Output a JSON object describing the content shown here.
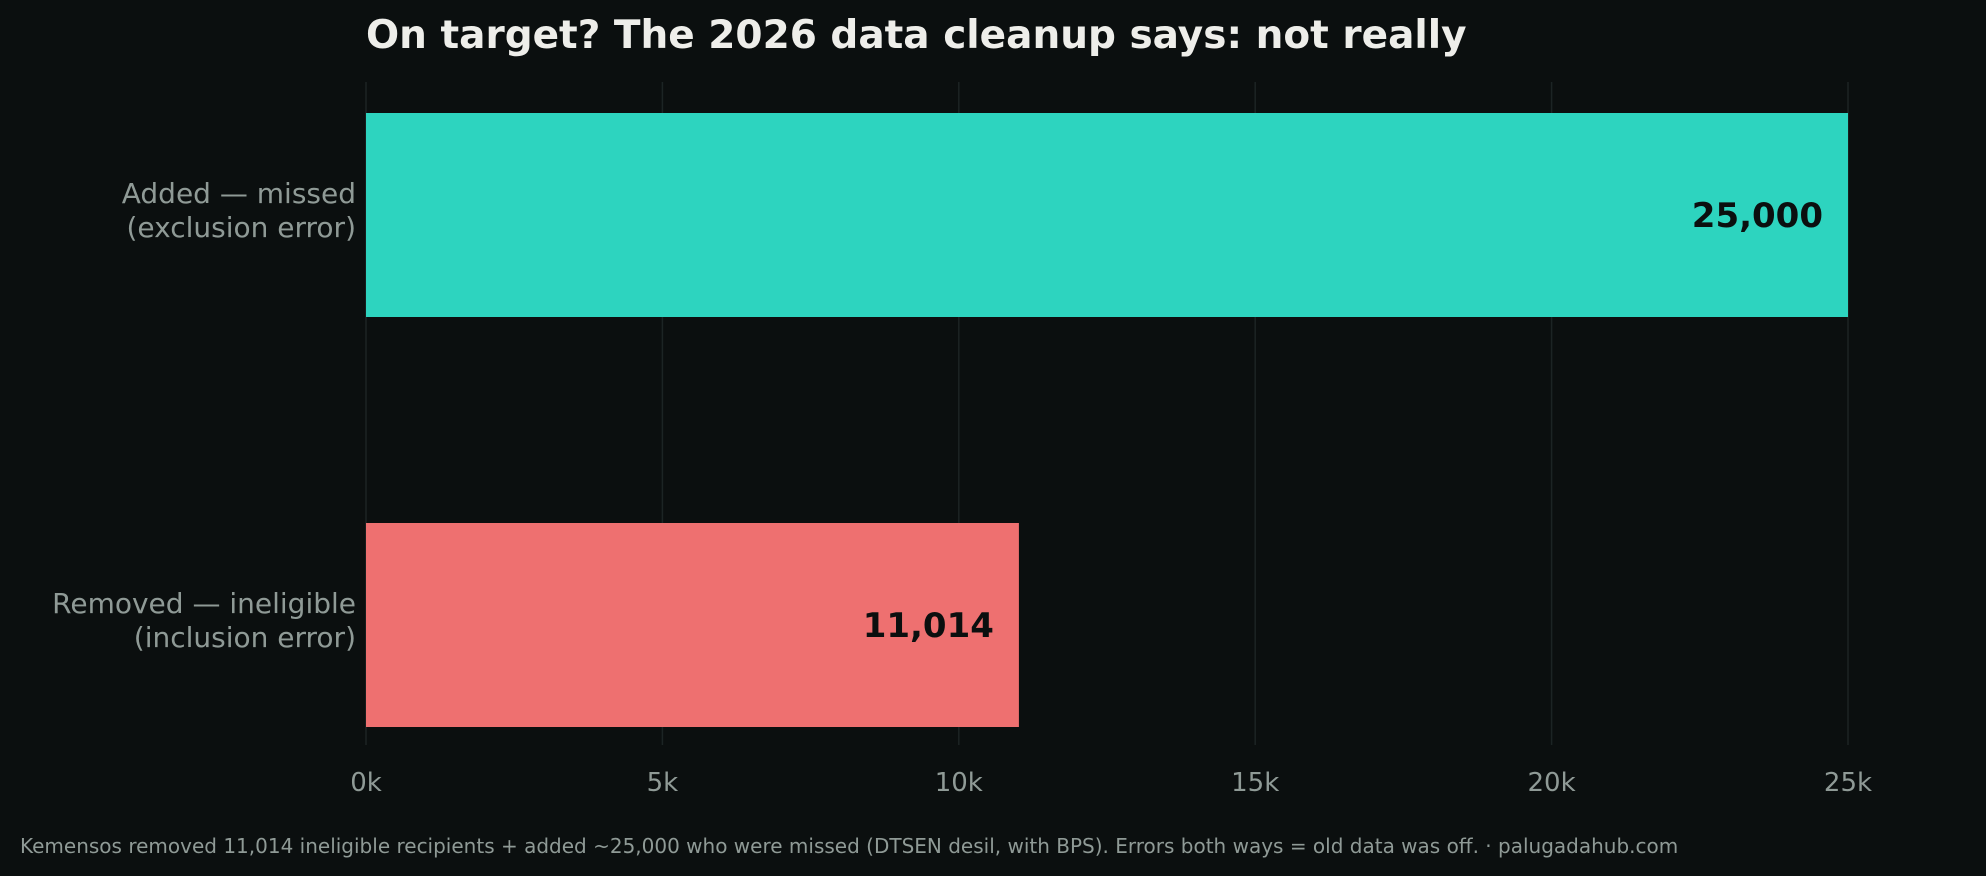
{
  "chart_data": {
    "type": "bar",
    "orientation": "horizontal",
    "title": "On target? The 2026 data cleanup says: not really",
    "categories": [
      [
        "Added — missed",
        "(exclusion error)"
      ],
      [
        "Removed — ineligible",
        "(inclusion error)"
      ]
    ],
    "values": [
      25000,
      11014
    ],
    "value_labels": [
      "25,000",
      "11,014"
    ],
    "colors": [
      "#2dd4bf",
      "#ee7070"
    ],
    "xlim": [
      0,
      25000
    ],
    "x_ticks": [
      0,
      5000,
      10000,
      15000,
      20000,
      25000
    ],
    "x_tick_labels": [
      "0k",
      "5k",
      "10k",
      "15k",
      "20k",
      "25k"
    ],
    "xlabel": "",
    "ylabel": "",
    "grid": "vertical",
    "legend": "none",
    "footnote": "Kemensos removed 11,014 ineligible recipients + added ~25,000 who were missed (DTSEN desil, with BPS). Errors both ways = old data was off. · palugadahub.com"
  },
  "colors": {
    "background": "#0b0f0f",
    "grid": "#1c2424",
    "text_primary": "#eeeeea",
    "text_muted": "#8f9a96"
  }
}
